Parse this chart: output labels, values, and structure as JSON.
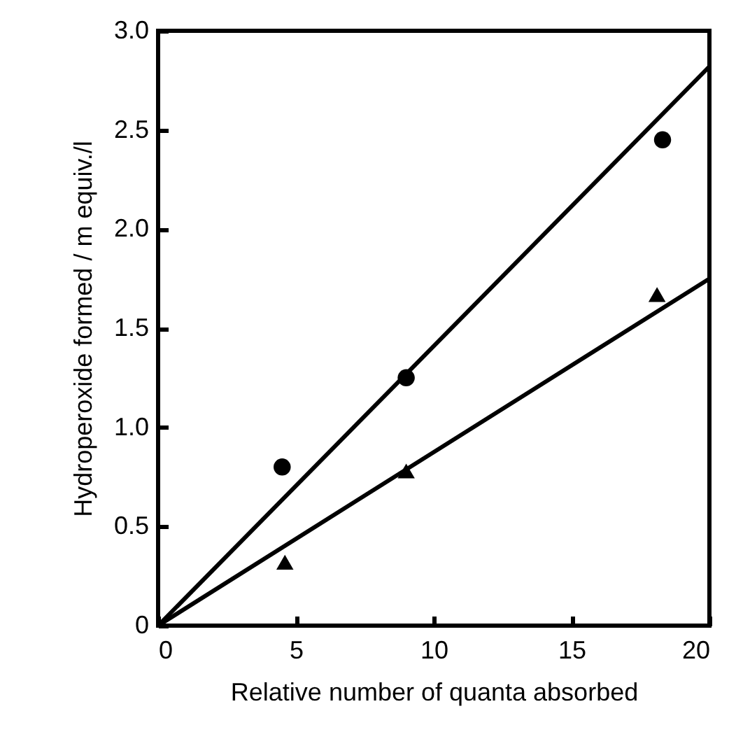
{
  "chart_data": {
    "type": "scatter",
    "xlabel": "Relative number of quanta absorbed",
    "ylabel": "Hydroperoxide formed / m equiv./l",
    "xlim": [
      0,
      20
    ],
    "xticks": [
      0,
      5,
      10,
      15,
      20
    ],
    "ylim": [
      0,
      3
    ],
    "yticks": [
      0,
      {
        "value": 0.5,
        "label": "0.5"
      },
      {
        "value": 1,
        "label": "1.0"
      },
      {
        "value": 1.5,
        "label": "1.5"
      },
      {
        "value": 2,
        "label": "2.0"
      },
      {
        "value": 2.5,
        "label": "2.5"
      },
      {
        "value": 3,
        "label": "3.0"
      }
    ],
    "grid": false,
    "series": [
      {
        "marker": "circle",
        "color": "#000000",
        "x": [
          4.5,
          9,
          18.3
        ],
        "values": [
          0.8,
          1.25,
          2.45
        ]
      },
      {
        "marker": "triangle",
        "color": "#000000",
        "x": [
          4.6,
          9,
          18.1
        ],
        "values": [
          0.32,
          0.78,
          1.67
        ]
      },
      {
        "type": "line",
        "color": "#000000",
        "x": [
          0,
          20
        ],
        "values": [
          0,
          2.82
        ]
      },
      {
        "type": "line",
        "color": "#000000",
        "x": [
          0,
          20
        ],
        "values": [
          0,
          1.75
        ]
      }
    ]
  }
}
